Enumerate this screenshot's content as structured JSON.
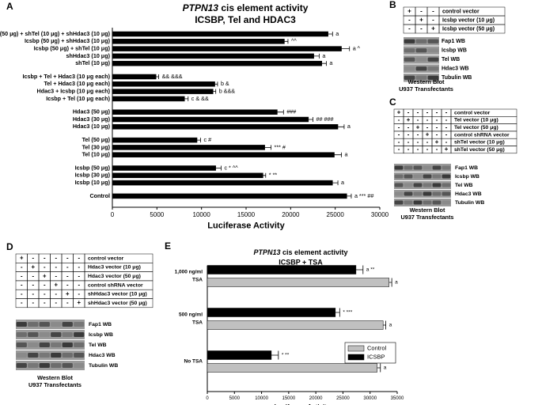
{
  "chart_data": [
    {
      "type": "bar",
      "horizontal": true,
      "panel": "A",
      "title": [
        "PTPN13 cis element activity",
        "ICSBP, Tel and HDAC3"
      ],
      "x_label": "Luciferase Activity",
      "color": "#000000",
      "categories": [
        "Icsbp (50 μg) + shTel (10 μg) + shHdac3 (10 μg)",
        "Icsbp (50 μg) + shHdac3 (10 μg)",
        "Icsbp (50 μg) + shTel (10 μg)",
        "shHdac3 (10 μg)",
        "shTel (10 μg)",
        "Icsbp + Tel + Hdac3 (10 μg each)",
        "Tel + Hdac3 (10 μg each)",
        "Hdac3 + Icsbp (10 μg each)",
        "Icsbp + Tel (10 μg each)",
        "Hdac3 (50 μg)",
        "Hdac3 (30 μg)",
        "Hdac3 (10 μg)",
        "Tel (50 μg)",
        "Tel (30 μg)",
        "Tel (10 μg)",
        "Icsbp (50 μg)",
        "Icsbp (30 μg)",
        "Icsbp (10 μg)",
        "Control"
      ],
      "values": [
        24200,
        19300,
        25700,
        22600,
        23500,
        4900,
        11500,
        11300,
        8100,
        18500,
        22000,
        25300,
        9500,
        17100,
        24900,
        11600,
        16900,
        24700,
        26300
      ],
      "errors": [
        500,
        400,
        900,
        600,
        500,
        300,
        300,
        300,
        400,
        700,
        500,
        700,
        400,
        700,
        800,
        600,
        300,
        600,
        500
      ],
      "annotations": [
        "a",
        "^^",
        "a ^",
        "a",
        "a",
        "&& &&&",
        "b &",
        "b &&&",
        "c & &&",
        "###",
        "## ###",
        "a",
        "c #",
        "*** #",
        "a",
        "c * ^^",
        "* **",
        "a",
        "a *** ##"
      ],
      "xlim": [
        0,
        30000
      ],
      "xticks": [
        0,
        5000,
        10000,
        15000,
        20000,
        25000,
        30000
      ]
    },
    {
      "type": "bar",
      "horizontal": true,
      "panel": "E",
      "title": [
        "PTPN13 cis element activity",
        "ICSBP + TSA"
      ],
      "x_label": "Luciferase Activity",
      "categories": [
        [
          "1,000 ng/ml",
          "TSA"
        ],
        [
          "500 ng/ml",
          "TSA"
        ],
        [
          "No TSA"
        ]
      ],
      "series": [
        {
          "name": "Control",
          "color": "#c0c0c0",
          "values": [
            33500,
            32400,
            31300
          ],
          "errors": [
            500,
            500,
            600
          ],
          "annotations": [
            "a",
            "a",
            "a"
          ]
        },
        {
          "name": "ICSBP",
          "color": "#000000",
          "values": [
            27400,
            23600,
            11800
          ],
          "errors": [
            1300,
            800,
            1300
          ],
          "annotations": [
            "a **",
            "* ***",
            "* **"
          ]
        }
      ],
      "xlim": [
        0,
        35000
      ],
      "xticks": [
        0,
        5000,
        10000,
        15000,
        20000,
        25000,
        30000,
        35000
      ],
      "legend": "lower right"
    }
  ],
  "western_blots": [
    {
      "panel": "B",
      "conditions": [
        {
          "signs": [
            "+",
            "-",
            "-"
          ],
          "label": "control vector"
        },
        {
          "signs": [
            "-",
            "+",
            "-"
          ],
          "label": "Icsbp vector (10 μg)"
        },
        {
          "signs": [
            "-",
            "-",
            "+"
          ],
          "label": "Icsbp vector (50 μg)"
        }
      ],
      "bands": [
        "Fap1 WB",
        "Icsbp WB",
        "Tel WB",
        "Hdac3 WB",
        "Tubulin WB"
      ],
      "caption": [
        "Western Blot",
        "U937 Transfectants"
      ]
    },
    {
      "panel": "C",
      "conditions": [
        {
          "signs": [
            "+",
            "-",
            "-",
            "-",
            "-",
            "-"
          ],
          "label": "control vector"
        },
        {
          "signs": [
            "-",
            "+",
            "-",
            "-",
            "-",
            "-"
          ],
          "label": "Tel vector (10 μg)"
        },
        {
          "signs": [
            "-",
            "-",
            "+",
            "-",
            "-",
            "-"
          ],
          "label": "Tel vector (50 μg)"
        },
        {
          "signs": [
            "-",
            "-",
            "-",
            "+",
            "-",
            "-"
          ],
          "label": "control shRNA vector"
        },
        {
          "signs": [
            "-",
            "-",
            "-",
            "-",
            "+",
            "-"
          ],
          "label": "shTel vector (10 μg)"
        },
        {
          "signs": [
            "-",
            "-",
            "-",
            "-",
            "-",
            "+"
          ],
          "label": "shTel vector (50 μg)"
        }
      ],
      "bands": [
        "Fap1 WB",
        "Icsbp WB",
        "Tel WB",
        "Hdac3 WB",
        "Tubulin WB"
      ],
      "caption": [
        "Western Blot",
        "U937 Transfectants"
      ]
    },
    {
      "panel": "D",
      "conditions": [
        {
          "signs": [
            "+",
            "-",
            "-",
            "-",
            "-",
            "-"
          ],
          "label": "control vector"
        },
        {
          "signs": [
            "-",
            "+",
            "-",
            "-",
            "-",
            "-"
          ],
          "label": "Hdac3 vector (10 μg)"
        },
        {
          "signs": [
            "-",
            "-",
            "+",
            "-",
            "-",
            "-"
          ],
          "label": "Hdac3 vector (50 μg)"
        },
        {
          "signs": [
            "-",
            "-",
            "-",
            "+",
            "-",
            "-"
          ],
          "label": "control shRNA vector"
        },
        {
          "signs": [
            "-",
            "-",
            "-",
            "-",
            "+",
            "-"
          ],
          "label": "shHdac3 vector (10 μg)"
        },
        {
          "signs": [
            "-",
            "-",
            "-",
            "-",
            "-",
            "+"
          ],
          "label": "shHdac3 vector (50 μg)"
        }
      ],
      "bands": [
        "Fap1 WB",
        "Icsbp WB",
        "Tel WB",
        "Hdac3 WB",
        "Tubulin WB"
      ],
      "caption": [
        "Western Blot",
        "U937 Transfectants"
      ]
    }
  ]
}
